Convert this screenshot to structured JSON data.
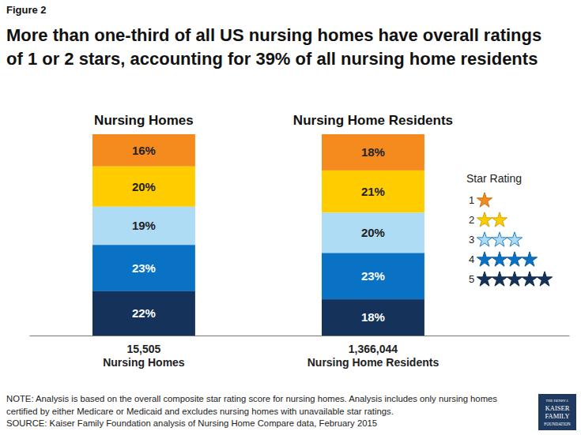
{
  "chart_data": {
    "type": "bar",
    "subtitle": "Figure 2",
    "title": "More than one-third of all US nursing homes have overall ratings\nof 1 or 2 stars, accounting for 39% of all nursing home residents",
    "annotations": [
      "Nursing Homes",
      "Nursing Home Residents"
    ],
    "categories": [
      "15,505\nNursing Homes",
      "1,366,044\nNursing Home Residents"
    ],
    "series": [
      {
        "name": "1",
        "color": "#f58a1f",
        "values": [
          16,
          18
        ],
        "value_labels": [
          "16%",
          "18%"
        ]
      },
      {
        "name": "2",
        "color": "#ffcc00",
        "values": [
          20,
          21
        ],
        "value_labels": [
          "20%",
          "21%"
        ]
      },
      {
        "name": "3",
        "color": "#addcf4",
        "values": [
          19,
          20
        ],
        "value_labels": [
          "19%",
          "20%"
        ]
      },
      {
        "name": "4",
        "color": "#0a72c4",
        "values": [
          23,
          23
        ],
        "value_labels": [
          "23%",
          "23%"
        ]
      },
      {
        "name": "5",
        "color": "#14325a",
        "values": [
          22,
          18
        ],
        "value_labels": [
          "22%",
          "18%"
        ]
      }
    ],
    "legend_title": "Star Rating",
    "legend": "right",
    "stacked": true,
    "data_labels": true,
    "tick_labels": "x",
    "ylim": [
      0,
      100
    ],
    "notes": [
      "NOTE: Analysis is based on the overall composite star rating score for nursing homes. Analysis includes only nursing homes",
      "certified by either Medicare or Medicaid and excludes nursing homes with unavailable star ratings.",
      "SOURCE: Kaiser Family Foundation analysis of Nursing Home Compare data, February 2015"
    ],
    "logo": [
      "THE HENRY J.",
      "KAISER",
      "FAMILY",
      "FOUNDATION"
    ]
  }
}
